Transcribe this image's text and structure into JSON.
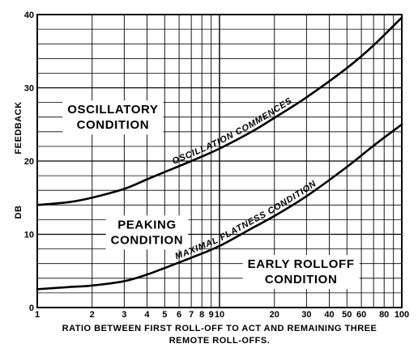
{
  "chart_data": {
    "type": "line",
    "x_scale": "log",
    "xlim": [
      1,
      100
    ],
    "ylim": [
      0,
      40
    ],
    "grid": true,
    "xlabel_line1": "RATIO BETWEEN FIRST ROLL-OFF TO ACT AND REMAINING THREE",
    "xlabel_line2": "REMOTE ROLL-OFFS.",
    "ylabel_top": "FEEDBACK",
    "ylabel_bottom": "DB",
    "x_ticks": [
      {
        "value": 1,
        "label": "1"
      },
      {
        "value": 2,
        "label": "2"
      },
      {
        "value": 3,
        "label": "3"
      },
      {
        "value": 4,
        "label": "4"
      },
      {
        "value": 5,
        "label": "5"
      },
      {
        "value": 6,
        "label": "6"
      },
      {
        "value": 7,
        "label": "7"
      },
      {
        "value": 8,
        "label": "8"
      },
      {
        "value": 9,
        "label": "9"
      },
      {
        "value": 10,
        "label": "10"
      },
      {
        "value": 20,
        "label": "20"
      },
      {
        "value": 30,
        "label": "30"
      },
      {
        "value": 40,
        "label": "40"
      },
      {
        "value": 50,
        "label": "50"
      },
      {
        "value": 60,
        "label": "60"
      },
      {
        "value": 80,
        "label": "80"
      },
      {
        "value": 100,
        "label": "100"
      }
    ],
    "y_ticks": [
      {
        "value": 0,
        "label": "0"
      },
      {
        "value": 10,
        "label": "10"
      },
      {
        "value": 20,
        "label": "20"
      },
      {
        "value": 30,
        "label": "30"
      },
      {
        "value": 40,
        "label": "40"
      }
    ],
    "series": [
      {
        "name": "OSCILLATION COMMENCES",
        "x": [
          1,
          1.5,
          2,
          3,
          4,
          5,
          7,
          10,
          15,
          20,
          30,
          50,
          70,
          100
        ],
        "y": [
          14,
          14.4,
          15,
          16.2,
          17.5,
          18.5,
          20,
          21.7,
          24,
          25.9,
          28.7,
          32.7,
          35.8,
          39.6
        ]
      },
      {
        "name": "MAXIMAL FLATNESS CONDITION",
        "x": [
          1,
          1.5,
          2,
          3,
          4,
          5,
          7,
          10,
          15,
          20,
          30,
          50,
          70,
          100
        ],
        "y": [
          2.5,
          2.8,
          3,
          3.6,
          4.5,
          5.4,
          6.8,
          8.4,
          10.8,
          12.5,
          15.2,
          19.2,
          22.1,
          25
        ]
      }
    ],
    "annotations": [
      {
        "id": "oscillatory",
        "lines": [
          "OSCILLATORY",
          "CONDITION"
        ],
        "x": 2.6,
        "y": 26.5
      },
      {
        "id": "peaking",
        "lines": [
          "PEAKING",
          "CONDITION"
        ],
        "x": 4,
        "y": 10.8
      },
      {
        "id": "early-rolloff",
        "lines": [
          "EARLY ROLLOFF",
          "CONDITION"
        ],
        "x": 28,
        "y": 5.4
      }
    ]
  }
}
